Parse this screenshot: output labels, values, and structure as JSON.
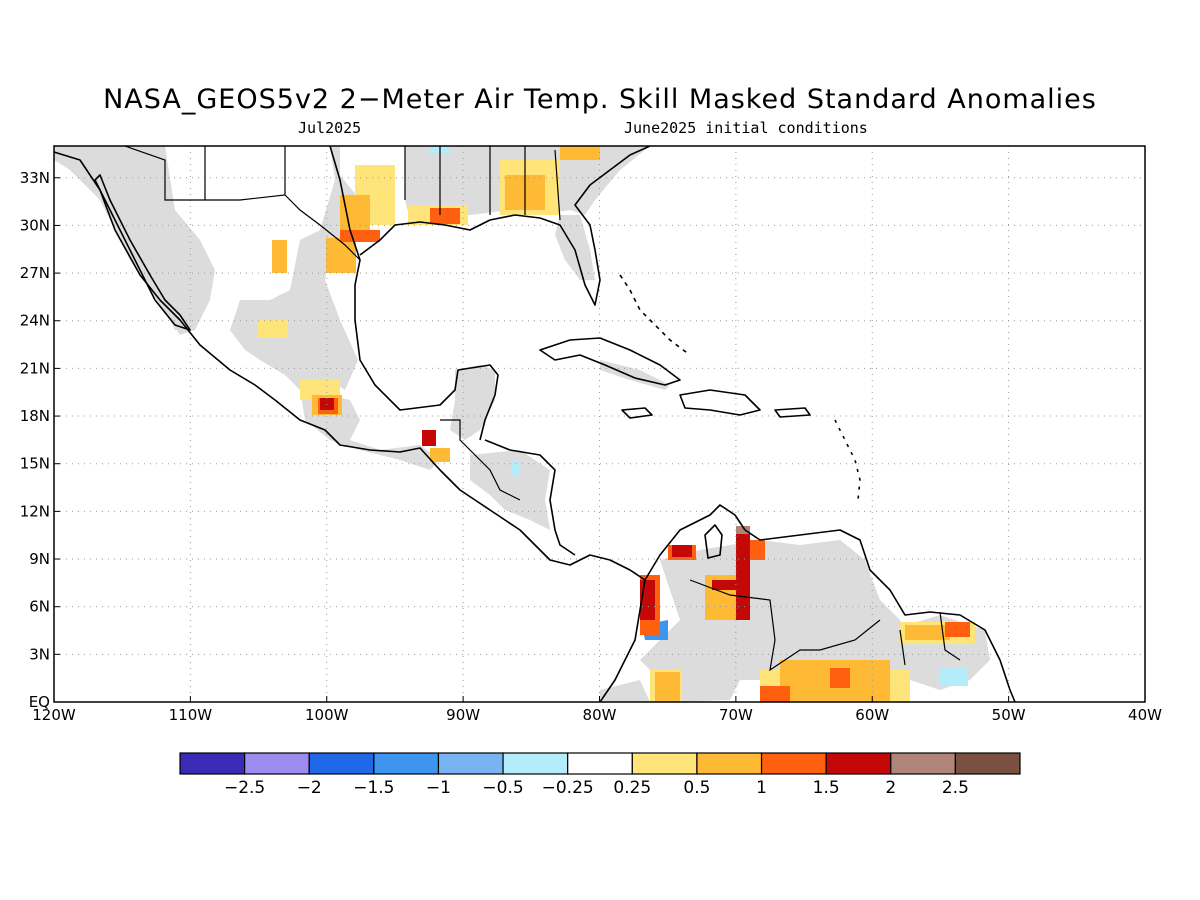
{
  "title": "NASA_GEOS5v2 2−Meter Air Temp. Skill Masked Standard Anomalies",
  "subtitle_left": "Jul2025",
  "subtitle_right": "June2025 initial conditions",
  "map": {
    "lon_range": [
      -120,
      -40
    ],
    "lat_range": [
      0,
      35
    ],
    "grid": true,
    "x_ticks": [
      {
        "value": -120,
        "label": "120W"
      },
      {
        "value": -110,
        "label": "110W"
      },
      {
        "value": -100,
        "label": "100W"
      },
      {
        "value": -90,
        "label": "90W"
      },
      {
        "value": -80,
        "label": "80W"
      },
      {
        "value": -70,
        "label": "70W"
      },
      {
        "value": -60,
        "label": "60W"
      },
      {
        "value": -50,
        "label": "50W"
      },
      {
        "value": -40,
        "label": "40W"
      }
    ],
    "y_ticks": [
      {
        "value": 0,
        "label": "EQ"
      },
      {
        "value": 3,
        "label": "3N"
      },
      {
        "value": 6,
        "label": "6N"
      },
      {
        "value": 9,
        "label": "9N"
      },
      {
        "value": 12,
        "label": "12N"
      },
      {
        "value": 15,
        "label": "15N"
      },
      {
        "value": 18,
        "label": "18N"
      },
      {
        "value": 21,
        "label": "21N"
      },
      {
        "value": 24,
        "label": "24N"
      },
      {
        "value": 27,
        "label": "27N"
      },
      {
        "value": 30,
        "label": "30N"
      },
      {
        "value": 33,
        "label": "33N"
      }
    ],
    "masked_color": "#dcdcdc"
  },
  "colorbar": {
    "colors": [
      "#3a2bb5",
      "#9d8cf0",
      "#2068e8",
      "#3d95f0",
      "#78b4f2",
      "#b4ecfa",
      "#ffffff",
      "#ffe47a",
      "#ffba35",
      "#ff6010",
      "#c40808",
      "#b08478",
      "#7a5040"
    ],
    "labels": [
      "−2.5",
      "−2",
      "−1.5",
      "−1",
      "−0.5",
      "−0.25",
      "0.25",
      "0.5",
      "1",
      "1.5",
      "2",
      "2.5"
    ]
  }
}
